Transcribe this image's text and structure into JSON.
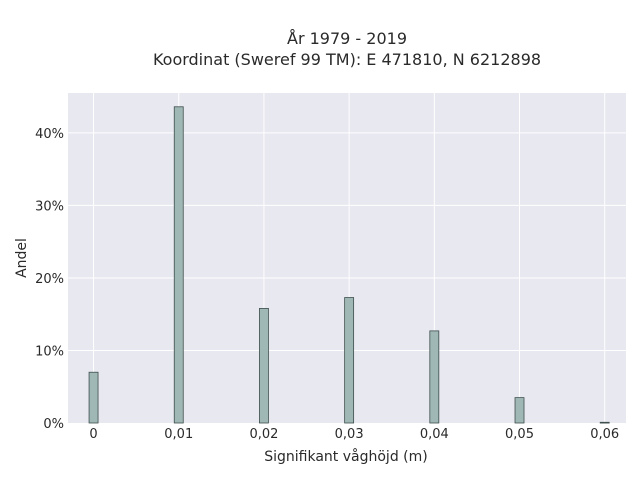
{
  "chart_data": {
    "type": "bar",
    "title": "År 1979 - 2019",
    "subtitle": "Koordinat (Sweref 99 TM): E 471810, N 6212898",
    "xlabel": "Signifikant våghöjd (m)",
    "ylabel": "Andel",
    "x": [
      0,
      0.01,
      0.02,
      0.03,
      0.04,
      0.05,
      0.06
    ],
    "values": [
      7.0,
      43.6,
      15.8,
      17.3,
      12.7,
      3.5,
      0.1
    ],
    "value_unit": "%",
    "xlim": [
      -0.003,
      0.0625
    ],
    "ylim": [
      0,
      45.5
    ],
    "x_ticks": [
      0,
      0.01,
      0.02,
      0.03,
      0.04,
      0.05,
      0.06
    ],
    "x_tick_labels": [
      "0",
      "0,01",
      "0,02",
      "0,03",
      "0,04",
      "0,05",
      "0,06"
    ],
    "y_ticks": [
      0,
      10,
      20,
      30,
      40
    ],
    "y_tick_labels": [
      "0%",
      "10%",
      "20%",
      "30%",
      "40%"
    ],
    "grid": true,
    "legend": "none",
    "colors": {
      "bar_fill": "#9fb7b5",
      "bar_stroke": "#3e4f4d",
      "plot_bg": "#e8e8f0",
      "grid": "#ffffff"
    }
  }
}
